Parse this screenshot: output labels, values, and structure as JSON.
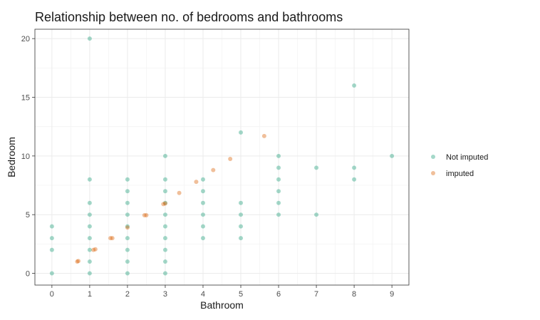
{
  "chart_data": {
    "type": "scatter",
    "title": "Relationship between no. of bedrooms and bathrooms",
    "xlabel": "Bathroom",
    "ylabel": "Bedroom",
    "xlim": [
      -0.45,
      9.45
    ],
    "ylim": [
      -1,
      20.8
    ],
    "xticks": [
      0,
      1,
      2,
      3,
      4,
      5,
      6,
      7,
      8,
      9
    ],
    "yticks": [
      0,
      5,
      10,
      15,
      20
    ],
    "grid": true,
    "legend_position": "right",
    "series": [
      {
        "name": "Not imputed",
        "color": "#1b9e77",
        "points": [
          [
            0,
            0
          ],
          [
            0,
            2
          ],
          [
            0,
            3
          ],
          [
            0,
            4
          ],
          [
            1,
            0
          ],
          [
            1,
            1
          ],
          [
            1,
            2
          ],
          [
            1,
            3
          ],
          [
            1,
            4
          ],
          [
            1,
            5
          ],
          [
            1,
            6
          ],
          [
            1,
            8
          ],
          [
            1,
            20
          ],
          [
            2,
            0
          ],
          [
            2,
            1
          ],
          [
            2,
            2
          ],
          [
            2,
            3
          ],
          [
            2,
            4
          ],
          [
            2,
            5
          ],
          [
            2,
            6
          ],
          [
            2,
            7
          ],
          [
            2,
            8
          ],
          [
            3,
            0
          ],
          [
            3,
            1
          ],
          [
            3,
            2
          ],
          [
            3,
            3
          ],
          [
            3,
            4
          ],
          [
            3,
            5
          ],
          [
            3,
            6
          ],
          [
            3,
            7
          ],
          [
            3,
            8
          ],
          [
            3,
            10
          ],
          [
            4,
            3
          ],
          [
            4,
            4
          ],
          [
            4,
            5
          ],
          [
            4,
            6
          ],
          [
            4,
            7
          ],
          [
            4,
            8
          ],
          [
            5,
            3
          ],
          [
            5,
            4
          ],
          [
            5,
            5
          ],
          [
            5,
            6
          ],
          [
            5,
            12
          ],
          [
            6,
            5
          ],
          [
            6,
            6
          ],
          [
            6,
            7
          ],
          [
            6,
            8
          ],
          [
            6,
            9
          ],
          [
            6,
            10
          ],
          [
            7,
            5
          ],
          [
            7,
            9
          ],
          [
            8,
            8
          ],
          [
            8,
            9
          ],
          [
            8,
            16
          ],
          [
            9,
            10
          ]
        ]
      },
      {
        "name": "imputed",
        "color": "#d95f02",
        "points": [
          [
            0.67,
            1.0
          ],
          [
            0.7,
            1.05
          ],
          [
            1.1,
            2.0
          ],
          [
            1.15,
            2.05
          ],
          [
            1.55,
            3.0
          ],
          [
            1.6,
            3.0
          ],
          [
            2.0,
            3.9
          ],
          [
            2.45,
            4.95
          ],
          [
            2.5,
            4.95
          ],
          [
            2.95,
            5.9
          ],
          [
            3.0,
            5.95
          ],
          [
            3.37,
            6.85
          ],
          [
            3.82,
            7.8
          ],
          [
            4.27,
            8.8
          ],
          [
            4.72,
            9.75
          ],
          [
            5.62,
            11.7
          ]
        ]
      }
    ]
  }
}
